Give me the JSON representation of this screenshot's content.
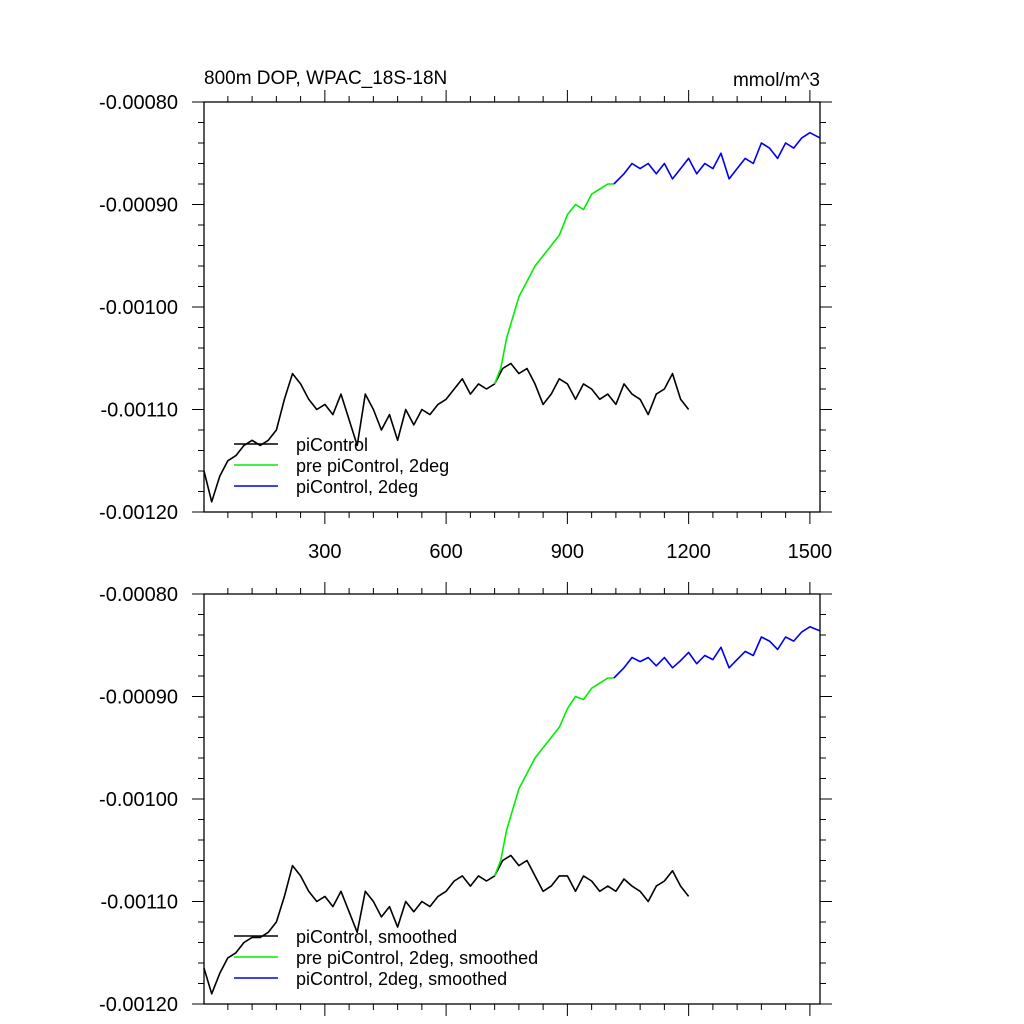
{
  "chart_data": [
    {
      "type": "line",
      "title": "800m DOP, WPAC_18S-18N",
      "units": "mmol/m^3",
      "xlim": [
        1,
        1525
      ],
      "ylim": [
        -0.0012,
        -0.0008
      ],
      "x_ticks": [
        300,
        600,
        900,
        1200,
        1500
      ],
      "x_tick_labels": [
        "300",
        "600",
        "900",
        "1200",
        "1500"
      ],
      "y_ticks": [
        -0.0008,
        -0.0009,
        -0.001,
        -0.0011,
        -0.0012
      ],
      "y_tick_labels": [
        "-0.00080",
        "-0.00090",
        "-0.00100",
        "-0.00110",
        "-0.00120"
      ],
      "grid": false,
      "legend_position": "bottom-left",
      "series": [
        {
          "name": "piControl",
          "color": "#000000",
          "x": [
            1,
            20,
            40,
            60,
            80,
            100,
            120,
            140,
            160,
            180,
            200,
            220,
            240,
            260,
            280,
            300,
            320,
            340,
            360,
            380,
            400,
            420,
            440,
            460,
            480,
            500,
            520,
            540,
            560,
            580,
            600,
            620,
            640,
            660,
            680,
            700,
            720,
            740,
            760,
            780,
            800,
            820,
            840,
            860,
            880,
            900,
            920,
            940,
            960,
            980,
            1000,
            1020,
            1040,
            1060,
            1080,
            1100,
            1120,
            1140,
            1160,
            1180,
            1200
          ],
          "y": [
            -0.00116,
            -0.00119,
            -0.001165,
            -0.00115,
            -0.001145,
            -0.001135,
            -0.00113,
            -0.001135,
            -0.00113,
            -0.00112,
            -0.00109,
            -0.001065,
            -0.001075,
            -0.00109,
            -0.0011,
            -0.001095,
            -0.001105,
            -0.001085,
            -0.00111,
            -0.001135,
            -0.001085,
            -0.0011,
            -0.00112,
            -0.001105,
            -0.00113,
            -0.0011,
            -0.001115,
            -0.0011,
            -0.001105,
            -0.001095,
            -0.00109,
            -0.00108,
            -0.00107,
            -0.001085,
            -0.001075,
            -0.00108,
            -0.001075,
            -0.00106,
            -0.001055,
            -0.001065,
            -0.00106,
            -0.001075,
            -0.001095,
            -0.001085,
            -0.00107,
            -0.001075,
            -0.00109,
            -0.001075,
            -0.00108,
            -0.00109,
            -0.001085,
            -0.001095,
            -0.001075,
            -0.001085,
            -0.00109,
            -0.001105,
            -0.001085,
            -0.00108,
            -0.001065,
            -0.00109,
            -0.0011
          ]
        },
        {
          "name": "pre piControl, 2deg",
          "color": "#00ee00",
          "x": [
            720,
            735,
            750,
            765,
            780,
            800,
            820,
            840,
            860,
            880,
            900,
            920,
            940,
            960,
            980,
            1000,
            1015
          ],
          "y": [
            -0.001075,
            -0.00106,
            -0.00103,
            -0.00101,
            -0.00099,
            -0.000975,
            -0.00096,
            -0.00095,
            -0.00094,
            -0.00093,
            -0.00091,
            -0.0009,
            -0.000905,
            -0.00089,
            -0.000885,
            -0.00088,
            -0.00088
          ]
        },
        {
          "name": "piControl, 2deg",
          "color": "#0000ee",
          "x": [
            1015,
            1040,
            1060,
            1080,
            1100,
            1120,
            1140,
            1160,
            1180,
            1200,
            1220,
            1240,
            1260,
            1280,
            1300,
            1320,
            1340,
            1360,
            1380,
            1400,
            1420,
            1440,
            1460,
            1480,
            1500,
            1525
          ],
          "y": [
            -0.00088,
            -0.00087,
            -0.00086,
            -0.000865,
            -0.00086,
            -0.00087,
            -0.00086,
            -0.000875,
            -0.000865,
            -0.000855,
            -0.00087,
            -0.00086,
            -0.000865,
            -0.00085,
            -0.000875,
            -0.000865,
            -0.000855,
            -0.00086,
            -0.00084,
            -0.000845,
            -0.000855,
            -0.00084,
            -0.000845,
            -0.000835,
            -0.00083,
            -0.000835
          ]
        }
      ]
    },
    {
      "type": "line",
      "xlim": [
        1,
        1525
      ],
      "ylim": [
        -0.0012,
        -0.0008
      ],
      "x_ticks": [
        300,
        600,
        900,
        1200,
        1500
      ],
      "y_ticks": [
        -0.0008,
        -0.0009,
        -0.001,
        -0.0011,
        -0.0012
      ],
      "y_tick_labels": [
        "-0.00080",
        "-0.00090",
        "-0.00100",
        "-0.00110",
        "-0.00120"
      ],
      "grid": false,
      "legend_position": "bottom-left",
      "series": [
        {
          "name": "piControl, smoothed",
          "color": "#000000",
          "x": [
            1,
            20,
            40,
            60,
            80,
            100,
            120,
            140,
            160,
            180,
            200,
            220,
            240,
            260,
            280,
            300,
            320,
            340,
            360,
            380,
            400,
            420,
            440,
            460,
            480,
            500,
            520,
            540,
            560,
            580,
            600,
            620,
            640,
            660,
            680,
            700,
            720,
            740,
            760,
            780,
            800,
            820,
            840,
            860,
            880,
            900,
            920,
            940,
            960,
            980,
            1000,
            1020,
            1040,
            1060,
            1080,
            1100,
            1120,
            1140,
            1160,
            1180,
            1200
          ],
          "y": [
            -0.001165,
            -0.00119,
            -0.00117,
            -0.001155,
            -0.00115,
            -0.00114,
            -0.001135,
            -0.001135,
            -0.00113,
            -0.00112,
            -0.001095,
            -0.001065,
            -0.001075,
            -0.00109,
            -0.0011,
            -0.001095,
            -0.001105,
            -0.00109,
            -0.00111,
            -0.00113,
            -0.00109,
            -0.0011,
            -0.001115,
            -0.001105,
            -0.001125,
            -0.0011,
            -0.00111,
            -0.0011,
            -0.001105,
            -0.001095,
            -0.00109,
            -0.00108,
            -0.001075,
            -0.001085,
            -0.001075,
            -0.00108,
            -0.001075,
            -0.00106,
            -0.001055,
            -0.001065,
            -0.00106,
            -0.001075,
            -0.00109,
            -0.001085,
            -0.001075,
            -0.001075,
            -0.00109,
            -0.001075,
            -0.00108,
            -0.00109,
            -0.001085,
            -0.00109,
            -0.001078,
            -0.001085,
            -0.00109,
            -0.0011,
            -0.001085,
            -0.00108,
            -0.00107,
            -0.001085,
            -0.001095
          ]
        },
        {
          "name": "pre piControl, 2deg, smoothed",
          "color": "#00ee00",
          "x": [
            720,
            735,
            750,
            765,
            780,
            800,
            820,
            840,
            860,
            880,
            900,
            920,
            940,
            960,
            980,
            1000,
            1015
          ],
          "y": [
            -0.001075,
            -0.00106,
            -0.00103,
            -0.00101,
            -0.00099,
            -0.000975,
            -0.00096,
            -0.00095,
            -0.00094,
            -0.00093,
            -0.000912,
            -0.0009,
            -0.000903,
            -0.000892,
            -0.000887,
            -0.000882,
            -0.000882
          ]
        },
        {
          "name": "piControl, 2deg, smoothed",
          "color": "#0000ee",
          "x": [
            1015,
            1040,
            1060,
            1080,
            1100,
            1120,
            1140,
            1160,
            1180,
            1200,
            1220,
            1240,
            1260,
            1280,
            1300,
            1320,
            1340,
            1360,
            1380,
            1400,
            1420,
            1440,
            1460,
            1480,
            1500,
            1525
          ],
          "y": [
            -0.000882,
            -0.000872,
            -0.000862,
            -0.000866,
            -0.000862,
            -0.00087,
            -0.000862,
            -0.000872,
            -0.000865,
            -0.000857,
            -0.000868,
            -0.00086,
            -0.000864,
            -0.000852,
            -0.000872,
            -0.000864,
            -0.000856,
            -0.00086,
            -0.000842,
            -0.000846,
            -0.000854,
            -0.000842,
            -0.000846,
            -0.000837,
            -0.000832,
            -0.000836
          ]
        }
      ]
    }
  ]
}
